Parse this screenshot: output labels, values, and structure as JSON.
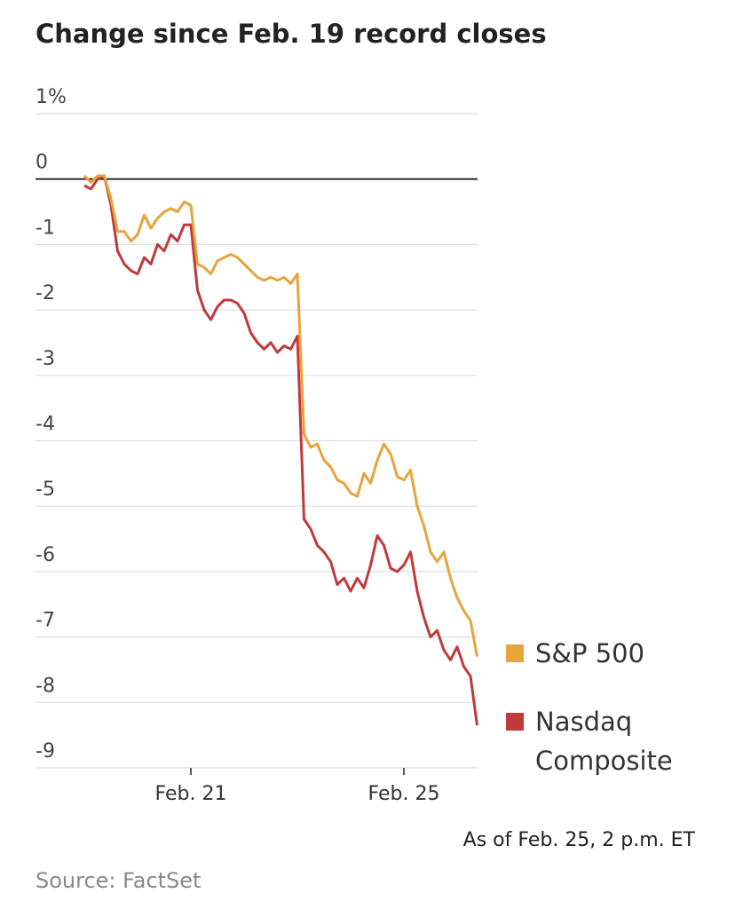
{
  "chart_data": {
    "type": "line",
    "title": "Change since Feb. 19 record closes",
    "categories": [
      null,
      null,
      null,
      null,
      null,
      null,
      null,
      null,
      null,
      null,
      null,
      null,
      null,
      null,
      null,
      null,
      "Feb. 21",
      null,
      null,
      null,
      null,
      null,
      null,
      null,
      null,
      null,
      null,
      null,
      null,
      null,
      null,
      null,
      null,
      null,
      null,
      null,
      null,
      null,
      null,
      null,
      null,
      null,
      null,
      null,
      null,
      null,
      null,
      null,
      "Feb. 25",
      null,
      null,
      null,
      null,
      null,
      null,
      null,
      null,
      null,
      null,
      null
    ],
    "series": [
      {
        "name": "S&P 500",
        "color": "#e8a33c",
        "values": [
          0.05,
          -0.05,
          0.05,
          0.05,
          -0.3,
          -0.8,
          -0.8,
          -0.95,
          -0.85,
          -0.55,
          -0.75,
          -0.6,
          -0.5,
          -0.45,
          -0.5,
          -0.35,
          -0.4,
          -1.3,
          -1.35,
          -1.45,
          -1.25,
          -1.2,
          -1.15,
          -1.2,
          -1.3,
          -1.4,
          -1.5,
          -1.55,
          -1.5,
          -1.55,
          -1.5,
          -1.6,
          -1.45,
          -3.9,
          -4.1,
          -4.05,
          -4.3,
          -4.4,
          -4.6,
          -4.65,
          -4.8,
          -4.85,
          -4.5,
          -4.65,
          -4.3,
          -4.05,
          -4.2,
          -4.55,
          -4.6,
          -4.45,
          -5.0,
          -5.3,
          -5.7,
          -5.85,
          -5.7,
          -6.1,
          -6.4,
          -6.6,
          -6.75,
          -7.3
        ]
      },
      {
        "name": "Nasdaq Composite",
        "color": "#c0393b",
        "values": [
          -0.1,
          -0.15,
          0.0,
          0.05,
          -0.4,
          -1.1,
          -1.3,
          -1.4,
          -1.45,
          -1.2,
          -1.3,
          -1.0,
          -1.1,
          -0.85,
          -0.95,
          -0.7,
          -0.7,
          -1.7,
          -2.0,
          -2.15,
          -1.95,
          -1.85,
          -1.85,
          -1.9,
          -2.05,
          -2.35,
          -2.5,
          -2.6,
          -2.5,
          -2.65,
          -2.55,
          -2.6,
          -2.4,
          -5.2,
          -5.35,
          -5.6,
          -5.7,
          -5.85,
          -6.2,
          -6.1,
          -6.3,
          -6.1,
          -6.25,
          -5.9,
          -5.45,
          -5.6,
          -5.95,
          -6.0,
          -5.9,
          -5.7,
          -6.3,
          -6.7,
          -7.0,
          -6.9,
          -7.2,
          -7.35,
          -7.15,
          -7.45,
          -7.6,
          -8.35
        ]
      }
    ],
    "ylim": [
      -9,
      1
    ],
    "yticks": [
      {
        "value": 1,
        "label": "1%"
      },
      0,
      -1,
      -2,
      -3,
      -4,
      -5,
      -6,
      -7,
      -8,
      -9
    ],
    "grid": true,
    "legend": "right",
    "note": "As of Feb. 25, 2 p.m. ET",
    "source": "Source: FactSet"
  }
}
